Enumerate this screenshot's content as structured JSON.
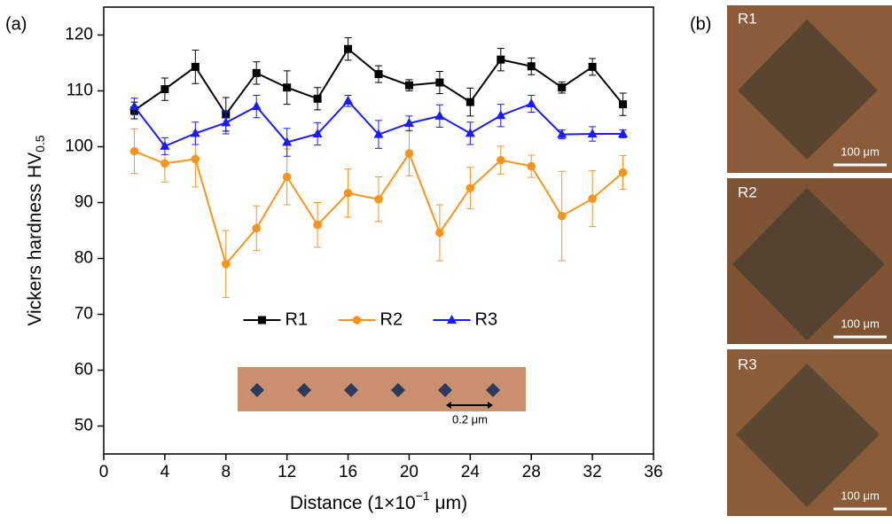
{
  "chart_data": {
    "type": "line",
    "x_label": "Distance (1×10",
    "x_label_superscript": "−1",
    "x_label_unit": " μm)",
    "y_label": "Vickers hardness HV",
    "y_label_subscript": "0.5",
    "x": [
      2,
      4,
      6,
      8,
      10,
      12,
      14,
      16,
      18,
      20,
      22,
      24,
      26,
      28,
      30,
      32,
      34
    ],
    "series": [
      {
        "name": "R1",
        "color": "#000000",
        "marker": "square",
        "values": [
          106.5,
          110.3,
          114.3,
          105.8,
          113.2,
          110.6,
          108.6,
          117.5,
          113,
          111,
          111.5,
          108,
          115.6,
          114.4,
          110.6,
          114.3,
          107.6
        ],
        "errors": [
          1.5,
          2,
          3,
          3,
          2,
          3,
          2,
          2,
          1.5,
          1,
          2,
          2.5,
          2,
          1.5,
          1,
          1.5,
          2
        ]
      },
      {
        "name": "R2",
        "color": "#f7941d",
        "marker": "circle",
        "values": [
          99.2,
          97,
          97.8,
          79,
          85.4,
          94.6,
          86,
          91.7,
          90.6,
          98.8,
          84.6,
          92.6,
          97.6,
          96.5,
          87.6,
          90.7,
          95.4
        ],
        "errors": [
          4,
          3.3,
          5,
          6,
          4,
          5,
          4,
          4.3,
          4,
          4,
          5,
          3.7,
          2.5,
          2,
          8,
          5,
          3
        ]
      },
      {
        "name": "R3",
        "color": "#1a1aff",
        "marker": "triangle",
        "values": [
          107.2,
          100.1,
          102.4,
          104.3,
          107.2,
          100.8,
          102.3,
          108.2,
          102.2,
          104.2,
          105.5,
          102.4,
          105.6,
          107.7,
          102.2,
          102.3,
          102.3
        ],
        "errors": [
          1.5,
          1.5,
          2,
          2,
          2,
          2.5,
          2,
          1,
          2.5,
          1.3,
          2,
          2,
          2,
          1.5,
          0.8,
          1.3,
          0.7
        ]
      }
    ],
    "xlim": [
      0,
      36
    ],
    "xticks": [
      0,
      4,
      8,
      12,
      16,
      20,
      24,
      28,
      32,
      36
    ],
    "ylim": [
      45,
      125
    ],
    "yticks": [
      50,
      60,
      70,
      80,
      90,
      100,
      110,
      120
    ],
    "legend": "center"
  },
  "panel_labels": [
    "(a)",
    "(b)"
  ],
  "inset": {
    "scale_label": "0.2 μm"
  },
  "micrographs": [
    {
      "label": "R1",
      "scale_label": "100 μm"
    },
    {
      "label": "R2",
      "scale_label": "100 μm"
    },
    {
      "label": "R3",
      "scale_label": "100 μm"
    }
  ]
}
